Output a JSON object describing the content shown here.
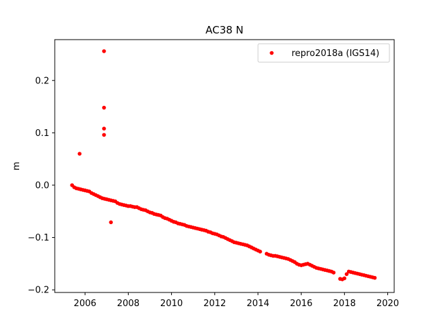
{
  "chart_data": {
    "type": "scatter",
    "title": "AC38 N",
    "xlabel": "",
    "ylabel": "m",
    "xlim": [
      2004.6,
      2020.3
    ],
    "ylim": [
      -0.205,
      0.278
    ],
    "x_ticks": [
      2006,
      2008,
      2010,
      2012,
      2014,
      2016,
      2018,
      2020
    ],
    "x_tick_labels": [
      "2006",
      "2008",
      "2010",
      "2012",
      "2014",
      "2016",
      "2018",
      "2020"
    ],
    "y_ticks": [
      -0.2,
      -0.1,
      0.0,
      0.1,
      0.2
    ],
    "y_tick_labels": [
      "−0.2",
      "−0.1",
      "0.0",
      "0.1",
      "0.2"
    ],
    "grid": false,
    "legend_position": "top-right",
    "series": [
      {
        "name": "repro2018a (IGS14)",
        "color": "#ff0000",
        "marker": "circle",
        "points": [
          [
            2005.4,
            0.0
          ],
          [
            2005.5,
            -0.004
          ],
          [
            2005.6,
            -0.006
          ],
          [
            2005.7,
            -0.007
          ],
          [
            2005.8,
            -0.008
          ],
          [
            2005.9,
            -0.009
          ],
          [
            2006.0,
            -0.01
          ],
          [
            2006.1,
            -0.011
          ],
          [
            2006.2,
            -0.012
          ],
          [
            2006.3,
            -0.015
          ],
          [
            2006.4,
            -0.017
          ],
          [
            2006.5,
            -0.019
          ],
          [
            2006.6,
            -0.021
          ],
          [
            2006.7,
            -0.023
          ],
          [
            2006.8,
            -0.025
          ],
          [
            2006.9,
            -0.026
          ],
          [
            2007.0,
            -0.027
          ],
          [
            2007.1,
            -0.028
          ],
          [
            2007.2,
            -0.029
          ],
          [
            2007.3,
            -0.03
          ],
          [
            2007.4,
            -0.031
          ],
          [
            2007.5,
            -0.034
          ],
          [
            2007.6,
            -0.036
          ],
          [
            2007.7,
            -0.037
          ],
          [
            2007.8,
            -0.038
          ],
          [
            2007.9,
            -0.039
          ],
          [
            2008.0,
            -0.04
          ],
          [
            2008.1,
            -0.04
          ],
          [
            2008.2,
            -0.041
          ],
          [
            2008.3,
            -0.042
          ],
          [
            2008.4,
            -0.042
          ],
          [
            2008.5,
            -0.044
          ],
          [
            2008.6,
            -0.046
          ],
          [
            2008.7,
            -0.047
          ],
          [
            2008.8,
            -0.048
          ],
          [
            2008.9,
            -0.05
          ],
          [
            2009.0,
            -0.052
          ],
          [
            2009.1,
            -0.053
          ],
          [
            2009.2,
            -0.055
          ],
          [
            2009.3,
            -0.056
          ],
          [
            2009.4,
            -0.057
          ],
          [
            2009.5,
            -0.058
          ],
          [
            2009.6,
            -0.061
          ],
          [
            2009.7,
            -0.063
          ],
          [
            2009.8,
            -0.064
          ],
          [
            2009.9,
            -0.066
          ],
          [
            2010.0,
            -0.068
          ],
          [
            2010.1,
            -0.07
          ],
          [
            2010.2,
            -0.071
          ],
          [
            2010.3,
            -0.073
          ],
          [
            2010.4,
            -0.074
          ],
          [
            2010.5,
            -0.075
          ],
          [
            2010.6,
            -0.076
          ],
          [
            2010.7,
            -0.078
          ],
          [
            2010.8,
            -0.079
          ],
          [
            2010.9,
            -0.08
          ],
          [
            2011.0,
            -0.081
          ],
          [
            2011.1,
            -0.082
          ],
          [
            2011.2,
            -0.083
          ],
          [
            2011.3,
            -0.084
          ],
          [
            2011.4,
            -0.085
          ],
          [
            2011.5,
            -0.086
          ],
          [
            2011.6,
            -0.087
          ],
          [
            2011.7,
            -0.089
          ],
          [
            2011.8,
            -0.09
          ],
          [
            2011.9,
            -0.092
          ],
          [
            2012.0,
            -0.093
          ],
          [
            2012.1,
            -0.094
          ],
          [
            2012.2,
            -0.096
          ],
          [
            2012.3,
            -0.098
          ],
          [
            2012.4,
            -0.099
          ],
          [
            2012.5,
            -0.101
          ],
          [
            2012.6,
            -0.103
          ],
          [
            2012.7,
            -0.105
          ],
          [
            2012.8,
            -0.107
          ],
          [
            2012.9,
            -0.109
          ],
          [
            2013.0,
            -0.11
          ],
          [
            2013.1,
            -0.111
          ],
          [
            2013.2,
            -0.112
          ],
          [
            2013.3,
            -0.113
          ],
          [
            2013.4,
            -0.114
          ],
          [
            2013.5,
            -0.115
          ],
          [
            2013.6,
            -0.117
          ],
          [
            2013.7,
            -0.119
          ],
          [
            2013.8,
            -0.121
          ],
          [
            2013.9,
            -0.123
          ],
          [
            2014.0,
            -0.125
          ],
          [
            2014.1,
            -0.127
          ],
          [
            2014.4,
            -0.131
          ],
          [
            2014.5,
            -0.133
          ],
          [
            2014.6,
            -0.134
          ],
          [
            2014.7,
            -0.135
          ],
          [
            2014.8,
            -0.135
          ],
          [
            2014.9,
            -0.136
          ],
          [
            2015.0,
            -0.137
          ],
          [
            2015.1,
            -0.138
          ],
          [
            2015.2,
            -0.139
          ],
          [
            2015.3,
            -0.14
          ],
          [
            2015.4,
            -0.141
          ],
          [
            2015.5,
            -0.143
          ],
          [
            2015.6,
            -0.145
          ],
          [
            2015.7,
            -0.147
          ],
          [
            2015.8,
            -0.15
          ],
          [
            2015.9,
            -0.152
          ],
          [
            2016.0,
            -0.153
          ],
          [
            2016.1,
            -0.152
          ],
          [
            2016.2,
            -0.151
          ],
          [
            2016.3,
            -0.15
          ],
          [
            2016.4,
            -0.152
          ],
          [
            2016.5,
            -0.154
          ],
          [
            2016.6,
            -0.156
          ],
          [
            2016.7,
            -0.158
          ],
          [
            2016.8,
            -0.159
          ],
          [
            2016.9,
            -0.16
          ],
          [
            2017.0,
            -0.161
          ],
          [
            2017.1,
            -0.162
          ],
          [
            2017.2,
            -0.163
          ],
          [
            2017.3,
            -0.164
          ],
          [
            2017.4,
            -0.165
          ],
          [
            2017.5,
            -0.167
          ],
          [
            2017.8,
            -0.179
          ],
          [
            2017.9,
            -0.18
          ],
          [
            2018.0,
            -0.178
          ],
          [
            2018.1,
            -0.17
          ],
          [
            2018.2,
            -0.165
          ],
          [
            2018.3,
            -0.166
          ],
          [
            2018.4,
            -0.167
          ],
          [
            2018.5,
            -0.168
          ],
          [
            2018.6,
            -0.169
          ],
          [
            2018.7,
            -0.17
          ],
          [
            2018.8,
            -0.171
          ],
          [
            2018.9,
            -0.172
          ],
          [
            2019.0,
            -0.173
          ],
          [
            2019.1,
            -0.174
          ],
          [
            2019.2,
            -0.175
          ],
          [
            2019.3,
            -0.176
          ],
          [
            2019.4,
            -0.177
          ],
          [
            2005.75,
            0.06
          ],
          [
            2006.88,
            0.256
          ],
          [
            2006.88,
            0.148
          ],
          [
            2006.88,
            0.108
          ],
          [
            2006.88,
            0.096
          ],
          [
            2007.2,
            -0.071
          ]
        ]
      }
    ]
  }
}
